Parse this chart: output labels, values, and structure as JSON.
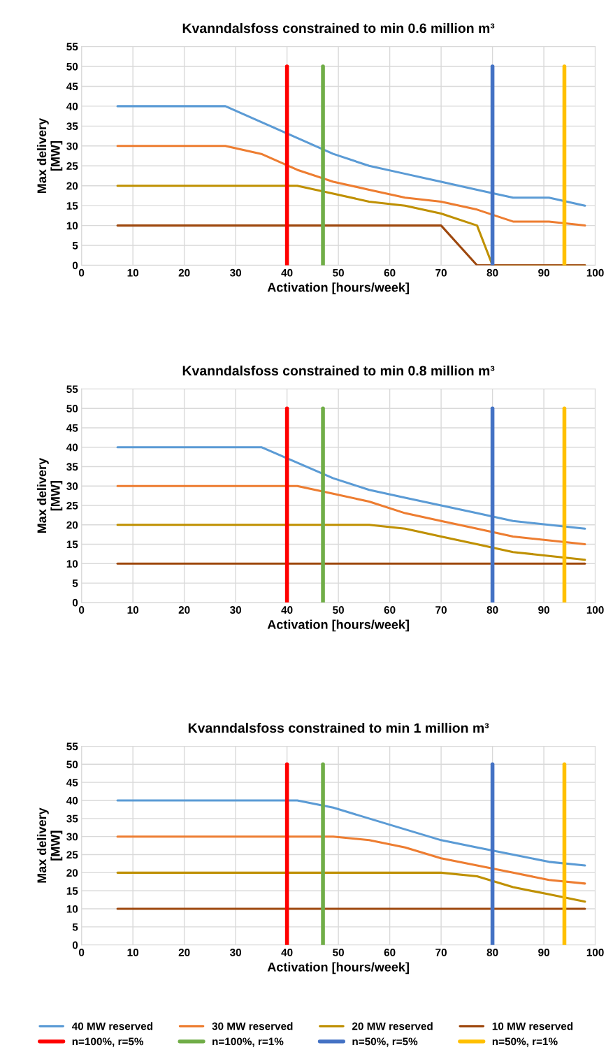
{
  "chart_data": [
    {
      "type": "line",
      "title": "Kvanndalsfoss constrained to min 0.6 million m³",
      "xlabel": "Activation [hours/week]",
      "ylabel": "Max delivery\n[MW]",
      "x": [
        7,
        14,
        21,
        28,
        35,
        42,
        49,
        56,
        63,
        70,
        77,
        84,
        91,
        98
      ],
      "xlim": [
        0,
        100
      ],
      "xticks": [
        0,
        10,
        20,
        30,
        40,
        50,
        60,
        70,
        80,
        90,
        100
      ],
      "ylim": [
        0,
        55
      ],
      "yticks": [
        0,
        5,
        10,
        15,
        20,
        25,
        30,
        35,
        40,
        45,
        50,
        55
      ],
      "grid": true,
      "legend": false,
      "marker": "none",
      "line_style": "solid",
      "series": [
        {
          "color": "#5b9bd5",
          "values": [
            40,
            40,
            40,
            40,
            36,
            32,
            28,
            25,
            23,
            21,
            19,
            17,
            17,
            15
          ]
        },
        {
          "color": "#ed7d31",
          "values": [
            30,
            30,
            30,
            30,
            28,
            24,
            21,
            19,
            17,
            16,
            14,
            11,
            11,
            10
          ]
        },
        {
          "color": "#bf9000",
          "x": [
            7,
            14,
            21,
            28,
            35,
            42,
            49,
            56,
            63,
            70,
            77,
            80,
            84,
            91,
            98
          ],
          "values": [
            20,
            20,
            20,
            20,
            20,
            20,
            18,
            16,
            15,
            13,
            10,
            0,
            0,
            0,
            0
          ]
        },
        {
          "color": "#9e480e",
          "values": [
            10,
            10,
            10,
            10,
            10,
            10,
            10,
            10,
            10,
            10,
            0,
            0,
            0,
            0
          ]
        },
        {
          "color": "#ff0000",
          "x": [
            40,
            40
          ],
          "values": [
            0,
            50
          ]
        },
        {
          "color": "#70ad47",
          "x": [
            47,
            47
          ],
          "values": [
            0,
            50
          ]
        },
        {
          "color": "#4472c4",
          "x": [
            80,
            80
          ],
          "values": [
            0,
            50
          ]
        },
        {
          "color": "#ffc000",
          "x": [
            94,
            94
          ],
          "values": [
            0,
            50
          ]
        }
      ]
    },
    {
      "type": "line",
      "title": "Kvanndalsfoss constrained to min 0.8 million m³",
      "xlabel": "Activation [hours/week]",
      "ylabel": "Max delivery\n[MW]",
      "x": [
        7,
        14,
        21,
        28,
        35,
        42,
        49,
        56,
        63,
        70,
        77,
        84,
        91,
        98
      ],
      "xlim": [
        0,
        100
      ],
      "xticks": [
        0,
        10,
        20,
        30,
        40,
        50,
        60,
        70,
        80,
        90,
        100
      ],
      "ylim": [
        0,
        55
      ],
      "yticks": [
        0,
        5,
        10,
        15,
        20,
        25,
        30,
        35,
        40,
        45,
        50,
        55
      ],
      "grid": true,
      "legend": false,
      "marker": "none",
      "line_style": "solid",
      "series": [
        {
          "color": "#5b9bd5",
          "values": [
            40,
            40,
            40,
            40,
            40,
            36,
            32,
            29,
            27,
            25,
            23,
            21,
            20,
            19
          ]
        },
        {
          "color": "#ed7d31",
          "values": [
            30,
            30,
            30,
            30,
            30,
            30,
            28,
            26,
            23,
            21,
            19,
            17,
            16,
            15
          ]
        },
        {
          "color": "#bf9000",
          "values": [
            20,
            20,
            20,
            20,
            20,
            20,
            20,
            20,
            19,
            17,
            15,
            13,
            12,
            11
          ]
        },
        {
          "color": "#9e480e",
          "values": [
            10,
            10,
            10,
            10,
            10,
            10,
            10,
            10,
            10,
            10,
            10,
            10,
            10,
            10
          ]
        },
        {
          "color": "#ff0000",
          "x": [
            40,
            40
          ],
          "values": [
            0,
            50
          ]
        },
        {
          "color": "#70ad47",
          "x": [
            47,
            47
          ],
          "values": [
            0,
            50
          ]
        },
        {
          "color": "#4472c4",
          "x": [
            80,
            80
          ],
          "values": [
            0,
            50
          ]
        },
        {
          "color": "#ffc000",
          "x": [
            94,
            94
          ],
          "values": [
            0,
            50
          ]
        }
      ]
    },
    {
      "type": "line",
      "title": "Kvanndalsfoss constrained to min 1 million m³",
      "xlabel": "Activation [hours/week]",
      "ylabel": "Max delivery\n[MW]",
      "x": [
        7,
        14,
        21,
        28,
        35,
        42,
        49,
        56,
        63,
        70,
        77,
        84,
        91,
        98
      ],
      "xlim": [
        0,
        100
      ],
      "xticks": [
        0,
        10,
        20,
        30,
        40,
        50,
        60,
        70,
        80,
        90,
        100
      ],
      "ylim": [
        0,
        55
      ],
      "yticks": [
        0,
        5,
        10,
        15,
        20,
        25,
        30,
        35,
        40,
        45,
        50,
        55
      ],
      "grid": true,
      "legend": "bottom",
      "marker": "none",
      "line_style": "solid",
      "series": [
        {
          "name": "40 MW reserved",
          "color": "#5b9bd5",
          "values": [
            40,
            40,
            40,
            40,
            40,
            40,
            38,
            35,
            32,
            29,
            27,
            25,
            23,
            22
          ]
        },
        {
          "name": "30 MW reserved",
          "color": "#ed7d31",
          "values": [
            30,
            30,
            30,
            30,
            30,
            30,
            30,
            29,
            27,
            24,
            22,
            20,
            18,
            17
          ]
        },
        {
          "name": "20 MW reserved",
          "color": "#bf9000",
          "values": [
            20,
            20,
            20,
            20,
            20,
            20,
            20,
            20,
            20,
            20,
            19,
            16,
            14,
            12
          ]
        },
        {
          "name": "10 MW reserved",
          "color": "#9e480e",
          "values": [
            10,
            10,
            10,
            10,
            10,
            10,
            10,
            10,
            10,
            10,
            10,
            10,
            10,
            10
          ]
        },
        {
          "name": "n=100%, r=5%",
          "color": "#ff0000",
          "x": [
            40,
            40
          ],
          "values": [
            0,
            50
          ]
        },
        {
          "name": "n=100%, r=1%",
          "color": "#70ad47",
          "x": [
            47,
            47
          ],
          "values": [
            0,
            50
          ]
        },
        {
          "name": "n=50%, r=5%",
          "color": "#4472c4",
          "x": [
            80,
            80
          ],
          "values": [
            0,
            50
          ]
        },
        {
          "name": "n=50%, r=1%",
          "color": "#ffc000",
          "x": [
            94,
            94
          ],
          "values": [
            0,
            50
          ]
        }
      ]
    }
  ]
}
